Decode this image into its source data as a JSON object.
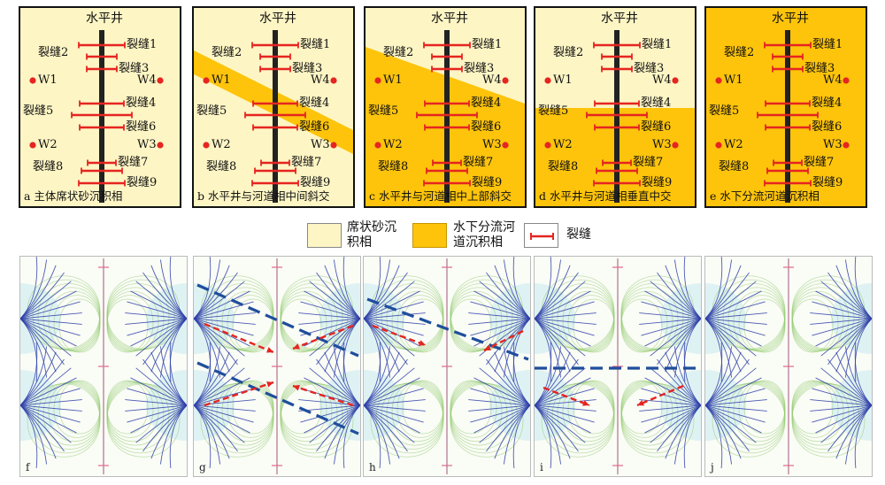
{
  "colors": {
    "sheet_sand": "#fdf5c4",
    "channel": "#fdc40b",
    "fracture": "#e52521",
    "well_bar": "#222222",
    "streamline_blue": "#2f3fa8",
    "streamline_green": "#8ec86a",
    "boundary_dash": "#1f4e9c",
    "flow_arrow": "#e52521"
  },
  "panels": [
    {
      "id": "a",
      "title": "水平井",
      "caption": "a 主体席状砂沉积相",
      "wells": [
        "W1",
        "W4",
        "W2",
        "W3"
      ],
      "fractures": [
        "裂缝1",
        "裂缝2",
        "裂缝3",
        "裂缝4",
        "裂缝5",
        "裂缝6",
        "裂缝7",
        "裂缝8",
        "裂缝9"
      ]
    },
    {
      "id": "b",
      "title": "水平井",
      "caption": "b 水平井与河道相中间斜交",
      "wells": [
        "W1",
        "W4",
        "W2",
        "W3"
      ],
      "fractures": [
        "裂缝1",
        "裂缝2",
        "裂缝3",
        "裂缝4",
        "裂缝5",
        "裂缝6",
        "裂缝7",
        "裂缝8",
        "裂缝9"
      ]
    },
    {
      "id": "c",
      "title": "水平井",
      "caption": "c 水平井与河道相中上部斜交",
      "wells": [
        "W1",
        "W4",
        "W2",
        "W3"
      ],
      "fractures": [
        "裂缝1",
        "裂缝2",
        "裂缝3",
        "裂缝4",
        "裂缝5",
        "裂缝6",
        "裂缝7",
        "裂缝8",
        "裂缝9"
      ]
    },
    {
      "id": "d",
      "title": "水平井",
      "caption": "d 水平井与河道相垂直中交",
      "wells": [
        "W1",
        "W4",
        "W2",
        "W3"
      ],
      "fractures": [
        "裂缝1",
        "裂缝2",
        "裂缝3",
        "裂缝4",
        "裂缝5",
        "裂缝6",
        "裂缝7",
        "裂缝8",
        "裂缝9"
      ]
    },
    {
      "id": "e",
      "title": "水平井",
      "caption": "e 水下分流河道沉积相",
      "wells": [
        "W1",
        "W4",
        "W2",
        "W3"
      ],
      "fractures": [
        "裂缝1",
        "裂缝2",
        "裂缝3",
        "裂缝4",
        "裂缝5",
        "裂缝6",
        "裂缝7",
        "裂缝8",
        "裂缝9"
      ]
    }
  ],
  "legend": {
    "sheet_sand": "席状砂沉积相",
    "channel": "水下分流河道沉积相",
    "fracture": "裂缝"
  },
  "simulations": [
    {
      "id": "f",
      "caption": "f"
    },
    {
      "id": "g",
      "caption": "g"
    },
    {
      "id": "h",
      "caption": "h"
    },
    {
      "id": "i",
      "caption": "i"
    },
    {
      "id": "j",
      "caption": "j"
    }
  ]
}
